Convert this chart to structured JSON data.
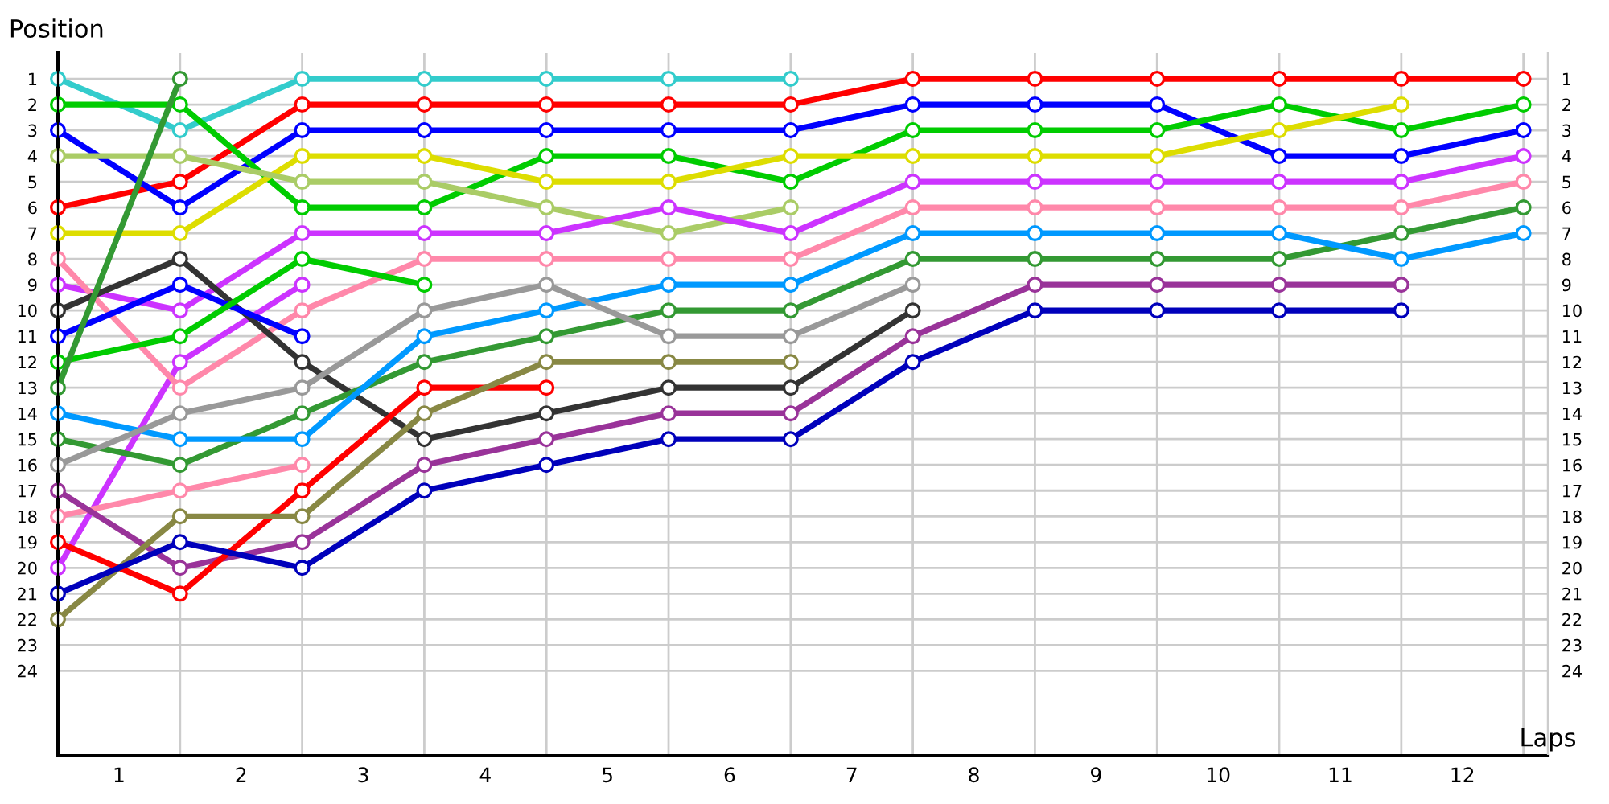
{
  "chart_data": {
    "type": "line",
    "xlabel": "Laps",
    "ylabel": "Position",
    "x": [
      0,
      1,
      2,
      3,
      4,
      5,
      6,
      7,
      8,
      9,
      10,
      11,
      12
    ],
    "xlim": [
      0,
      12.2
    ],
    "xticks": [
      {
        "value": 0,
        "label": null
      },
      {
        "value": 0.5,
        "label": "1"
      },
      {
        "value": 1,
        "label": null
      },
      {
        "value": 1.5,
        "label": "2"
      },
      {
        "value": 2,
        "label": null
      },
      {
        "value": 2.5,
        "label": "3"
      },
      {
        "value": 3,
        "label": null
      },
      {
        "value": 3.5,
        "label": "4"
      },
      {
        "value": 4,
        "label": null
      },
      {
        "value": 4.5,
        "label": "5"
      },
      {
        "value": 5,
        "label": null
      },
      {
        "value": 5.5,
        "label": "6"
      },
      {
        "value": 6,
        "label": null
      },
      {
        "value": 6.5,
        "label": "7"
      },
      {
        "value": 7,
        "label": null
      },
      {
        "value": 7.5,
        "label": "8"
      },
      {
        "value": 8,
        "label": null
      },
      {
        "value": 8.5,
        "label": "9"
      },
      {
        "value": 9,
        "label": null
      },
      {
        "value": 9.5,
        "label": "10"
      },
      {
        "value": 10,
        "label": null
      },
      {
        "value": 10.5,
        "label": "11"
      },
      {
        "value": 11,
        "label": null
      },
      {
        "value": 11.5,
        "label": "12"
      },
      {
        "value": 12,
        "label": null
      }
    ],
    "ylim": [
      27.3,
      0
    ],
    "yticks": [
      1,
      2,
      3,
      4,
      5,
      6,
      7,
      8,
      9,
      10,
      11,
      12,
      13,
      14,
      15,
      16,
      17,
      18,
      19,
      20,
      21,
      22,
      23,
      24
    ],
    "y2lim": [
      27.3,
      0
    ],
    "y2ticks": [
      1,
      2,
      3,
      4,
      5,
      6,
      7,
      8,
      9,
      10,
      11,
      12,
      13,
      14,
      15,
      16,
      17,
      18,
      19,
      20,
      21,
      22,
      23,
      24
    ],
    "grid": true,
    "marker": "circle",
    "line_style": "solid",
    "series": [
      {
        "color": "#33cccc",
        "values": [
          1,
          3,
          1,
          1,
          1,
          1,
          1,
          null,
          null,
          null,
          null,
          null,
          null
        ]
      },
      {
        "color": "#ff0000",
        "values": [
          6,
          5,
          2,
          2,
          2,
          2,
          2,
          1,
          1,
          1,
          1,
          1,
          1
        ]
      },
      {
        "color": "#0000ff",
        "values": [
          3,
          6,
          3,
          3,
          3,
          3,
          3,
          2,
          2,
          2,
          4,
          4,
          3
        ]
      },
      {
        "color": "#00cc00",
        "values": [
          2,
          2,
          6,
          6,
          4,
          4,
          5,
          3,
          3,
          3,
          2,
          3,
          2
        ]
      },
      {
        "color": "#dddd00",
        "values": [
          7,
          7,
          4,
          4,
          5,
          5,
          4,
          4,
          4,
          4,
          3,
          2,
          null
        ]
      },
      {
        "color": "#aacc66",
        "values": [
          4,
          4,
          5,
          5,
          6,
          7,
          6,
          null,
          null,
          null,
          null,
          null,
          null
        ]
      },
      {
        "color": "#cc33ff",
        "values": [
          9,
          10,
          7,
          7,
          7,
          6,
          7,
          5,
          5,
          5,
          5,
          5,
          4
        ]
      },
      {
        "color": "#cc33ff",
        "values": [
          20,
          12,
          9,
          null,
          null,
          null,
          null,
          null,
          null,
          null,
          null,
          null,
          null
        ]
      },
      {
        "color": "#ff88aa",
        "values": [
          8,
          13,
          10,
          8,
          8,
          8,
          8,
          6,
          6,
          6,
          6,
          6,
          5
        ]
      },
      {
        "color": "#ff88aa",
        "values": [
          18,
          17,
          16,
          null,
          null,
          null,
          null,
          null,
          null,
          null,
          null,
          null,
          null
        ]
      },
      {
        "color": "#333333",
        "values": [
          10,
          8,
          12,
          15,
          14,
          13,
          13,
          10,
          null,
          null,
          null,
          null,
          null
        ]
      },
      {
        "color": "#0000ff",
        "values": [
          11,
          9,
          11,
          null,
          null,
          null,
          null,
          null,
          null,
          null,
          null,
          null,
          null
        ]
      },
      {
        "color": "#00cc00",
        "values": [
          12,
          11,
          8,
          9,
          null,
          null,
          null,
          null,
          null,
          null,
          null,
          null,
          null
        ]
      },
      {
        "color": "#339933",
        "values": [
          13,
          1,
          null,
          null,
          null,
          null,
          null,
          null,
          null,
          null,
          null,
          null,
          null
        ]
      },
      {
        "color": "#339933",
        "values": [
          15,
          16,
          14,
          12,
          11,
          10,
          10,
          8,
          8,
          8,
          8,
          7,
          6
        ]
      },
      {
        "color": "#0099ff",
        "values": [
          14,
          15,
          15,
          11,
          10,
          9,
          9,
          7,
          7,
          7,
          7,
          8,
          7
        ]
      },
      {
        "color": "#999999",
        "values": [
          16,
          14,
          13,
          10,
          9,
          11,
          11,
          9,
          null,
          null,
          null,
          null,
          null
        ]
      },
      {
        "color": "#993399",
        "values": [
          17,
          20,
          19,
          16,
          15,
          14,
          14,
          11,
          9,
          9,
          9,
          9,
          null
        ]
      },
      {
        "color": "#ff0000",
        "values": [
          19,
          21,
          17,
          13,
          13,
          null,
          null,
          null,
          null,
          null,
          null,
          null,
          null
        ]
      },
      {
        "color": "#888844",
        "values": [
          22,
          18,
          18,
          14,
          12,
          12,
          12,
          null,
          null,
          null,
          null,
          null,
          null
        ]
      },
      {
        "color": "#0000bb",
        "values": [
          21,
          19,
          20,
          17,
          16,
          15,
          15,
          12,
          10,
          10,
          10,
          10,
          null
        ]
      }
    ]
  }
}
